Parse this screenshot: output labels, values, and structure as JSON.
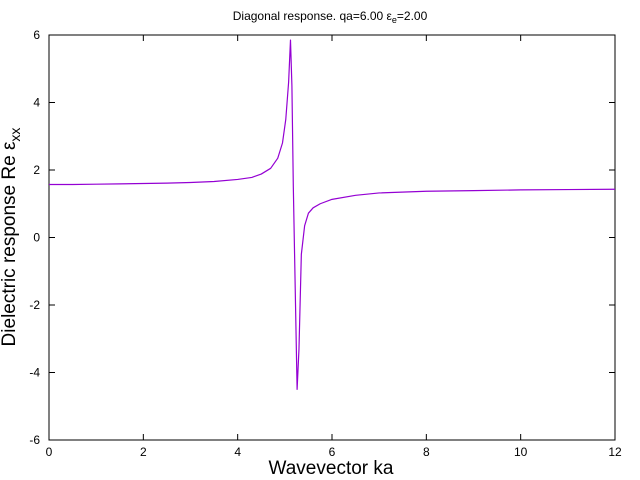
{
  "chart_data": {
    "type": "line",
    "title": {
      "main": "Diagonal response. qa=6.00 ",
      "eps": "ε",
      "eps_sub": "e",
      "eps_value": "=2.00"
    },
    "xlabel": "Wavevector ka",
    "ylabel": {
      "main": "Dielectric response Re ε",
      "sub": "xx"
    },
    "xlim": [
      0,
      12
    ],
    "ylim": [
      -6,
      6
    ],
    "x_ticks": [
      0,
      2,
      4,
      6,
      8,
      10,
      12
    ],
    "y_ticks": [
      -6,
      -4,
      -2,
      0,
      2,
      4,
      6
    ],
    "grid": false,
    "line_color": "#9400d3",
    "series": [
      {
        "x": [
          0.0,
          0.5,
          1.0,
          1.5,
          2.0,
          2.5,
          3.0,
          3.5,
          4.0,
          4.3,
          4.5,
          4.7,
          4.85,
          4.95,
          5.02,
          5.08,
          5.12,
          5.15,
          5.18,
          5.22,
          5.26,
          5.3,
          5.35,
          5.42,
          5.5,
          5.6,
          5.75,
          6.0,
          6.5,
          7.0,
          8.0,
          9.0,
          10.0,
          11.0,
          12.0
        ],
        "y": [
          1.57,
          1.57,
          1.58,
          1.59,
          1.6,
          1.61,
          1.63,
          1.66,
          1.72,
          1.78,
          1.88,
          2.05,
          2.35,
          2.8,
          3.5,
          4.6,
          5.85,
          4.5,
          1.5,
          -1.5,
          -4.5,
          -3.3,
          -0.5,
          0.35,
          0.72,
          0.88,
          1.0,
          1.13,
          1.25,
          1.32,
          1.37,
          1.39,
          1.41,
          1.42,
          1.43
        ]
      }
    ]
  }
}
